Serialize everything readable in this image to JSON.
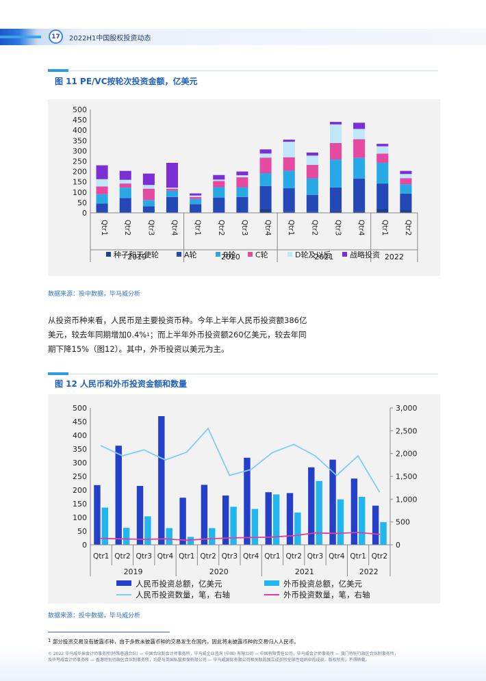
{
  "header": {
    "page_number": "17",
    "report_title": "2022H1中国股权投资动态"
  },
  "figure11": {
    "title": "图 11  PE/VC按轮次投资金额，亿美元",
    "source": "数据来源：投中数据，毕马威分析",
    "chart_data": {
      "type": "bar",
      "stacked": true,
      "categories": [
        "Qtr1",
        "Qtr2",
        "Qtr3",
        "Qtr4",
        "Qtr1",
        "Qtr2",
        "Qtr3",
        "Qtr4",
        "Qtr1",
        "Qtr2",
        "Qtr3",
        "Qtr4",
        "Qtr1",
        "Qtr2"
      ],
      "years": [
        {
          "label": "2019",
          "span": 4
        },
        {
          "label": "2020",
          "span": 4
        },
        {
          "label": "2021",
          "span": 4
        },
        {
          "label": "2022",
          "span": 2
        }
      ],
      "ylim": [
        0,
        500
      ],
      "yticks": [
        0,
        50,
        100,
        150,
        200,
        250,
        300,
        350,
        400,
        450,
        500
      ],
      "series": [
        {
          "name": "种子和天使轮",
          "color": "#1d3f8f",
          "values": [
            3,
            2,
            2,
            2,
            2,
            2,
            2,
            20,
            4,
            4,
            8,
            6,
            20,
            15
          ]
        },
        {
          "name": "A轮",
          "color": "#2449b6",
          "values": [
            42,
            70,
            30,
            75,
            40,
            72,
            75,
            110,
            115,
            83,
            115,
            160,
            122,
            78
          ]
        },
        {
          "name": "B轮",
          "color": "#29a8e6",
          "values": [
            45,
            50,
            30,
            30,
            25,
            50,
            47,
            62,
            85,
            80,
            135,
            100,
            100,
            45
          ]
        },
        {
          "name": "C轮",
          "color": "#e34aa0",
          "values": [
            38,
            20,
            55,
            10,
            10,
            30,
            48,
            75,
            65,
            65,
            80,
            90,
            45,
            30
          ]
        },
        {
          "name": "D轮及以后",
          "color": "#bfe6f9",
          "values": [
            35,
            18,
            18,
            5,
            7,
            7,
            10,
            20,
            75,
            45,
            90,
            50,
            35,
            20
          ]
        },
        {
          "name": "战略投资",
          "color": "#7c2fd3",
          "values": [
            67,
            43,
            55,
            120,
            10,
            22,
            18,
            20,
            10,
            15,
            12,
            30,
            12,
            15
          ]
        }
      ]
    }
  },
  "body": {
    "line1": "从投资币种来看，人民币是主要投资币种。今年上半年人民币投资额386亿",
    "line2a": "美元，较去年同期增加0.4%",
    "line2_sup": "1",
    "line2b": "；而上半年外币投资额260亿美元，较去年同",
    "line3": "期下降15%（图12）。其中，外币投资以美元为主。"
  },
  "figure12": {
    "title": "图 12  人民币和外币投资金额和数量",
    "source": "数据来源：投中数据，毕马威分析",
    "chart_data": {
      "type": "bar",
      "categories": [
        "Qtr1",
        "Qtr2",
        "Qtr3",
        "Qtr4",
        "Qtr1",
        "Qtr2",
        "Qtr3",
        "Qtr4",
        "Qtr1",
        "Qtr2",
        "Qtr3",
        "Qtr4",
        "Qtr1",
        "Qtr2"
      ],
      "years": [
        {
          "label": "2019",
          "span": 4
        },
        {
          "label": "2020",
          "span": 4
        },
        {
          "label": "2021",
          "span": 4
        },
        {
          "label": "2022",
          "span": 2
        }
      ],
      "ylim": [
        0,
        500
      ],
      "yticks": [
        0,
        50,
        100,
        150,
        200,
        250,
        300,
        350,
        400,
        450,
        500
      ],
      "y2lim": [
        0,
        3000
      ],
      "y2ticks": [
        "0",
        "500",
        "1,000",
        "1,500",
        "2,000",
        "2,500",
        "3,000"
      ],
      "bar_series": [
        {
          "name": "人民币投资总额，亿美元",
          "color": "#2440c9",
          "values": [
            218,
            362,
            215,
            470,
            172,
            219,
            180,
            318,
            192,
            189,
            283,
            311,
            242,
            143
          ]
        },
        {
          "name": "外币投资总额，亿美元",
          "color": "#22b6ee",
          "values": [
            136,
            62,
            104,
            61,
            29,
            61,
            139,
            131,
            184,
            118,
            233,
            166,
            175,
            83
          ]
        }
      ],
      "line_series": [
        {
          "name": "人民币投资数量，笔，右轴",
          "color": "#7fcdf4",
          "values": [
            2170,
            1950,
            2080,
            1860,
            2030,
            2550,
            1520,
            1650,
            2020,
            2200,
            1950,
            1520,
            1950,
            1160
          ]
        },
        {
          "name": "外币投资数量，笔，右轴",
          "color": "#e0409a",
          "values": [
            140,
            130,
            120,
            130,
            100,
            130,
            150,
            160,
            170,
            200,
            260,
            250,
            270,
            230
          ]
        }
      ]
    }
  },
  "footnote": {
    "mark": "1",
    "text": "部分投资交易没有披露币种，由于多数未披露币种的交易发生在国内，因此将未披露币种的交易归入人民币。"
  },
  "legal": {
    "line1": "© 2022 毕马威华振会计师事务所(特殊普通合伙) — 中国合伙制会计师事务所，毕马威企业咨询 (中国) 有限公司 — 中国有限责任公司，毕马威会计师事务所 — 澳门特别行政区合伙制事务所，",
    "line2": "及毕马威会计师事务所 — 香港特别行政区合伙制事务所，均是与英国私营担保有限公司 — 毕马威国际有限公司相关联的独立成员所全球性组织中的成员。版权所有，不得转载。"
  }
}
